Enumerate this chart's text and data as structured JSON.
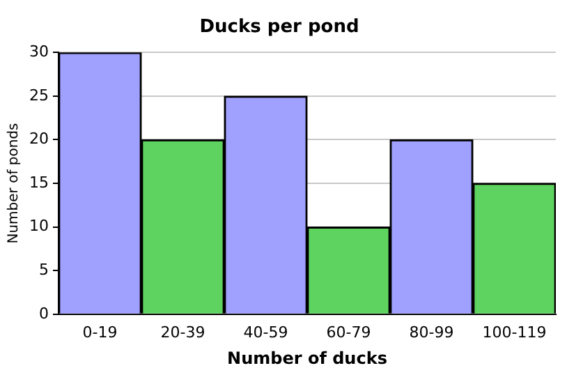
{
  "chart_data": {
    "type": "bar",
    "title": "Ducks per pond",
    "xlabel": "Number of ducks",
    "ylabel": "Number of ponds",
    "categories": [
      "0-19",
      "20-39",
      "40-59",
      "60-79",
      "80-99",
      "100-119"
    ],
    "values": [
      30,
      20,
      25,
      10,
      20,
      15
    ],
    "colors": [
      "#a0a0ff",
      "#5fd35f",
      "#a0a0ff",
      "#5fd35f",
      "#a0a0ff",
      "#5fd35f"
    ],
    "ylim": [
      0,
      30
    ],
    "yticks": [
      0,
      5,
      10,
      15,
      20,
      25,
      30
    ],
    "grid": "y",
    "legend": false
  }
}
